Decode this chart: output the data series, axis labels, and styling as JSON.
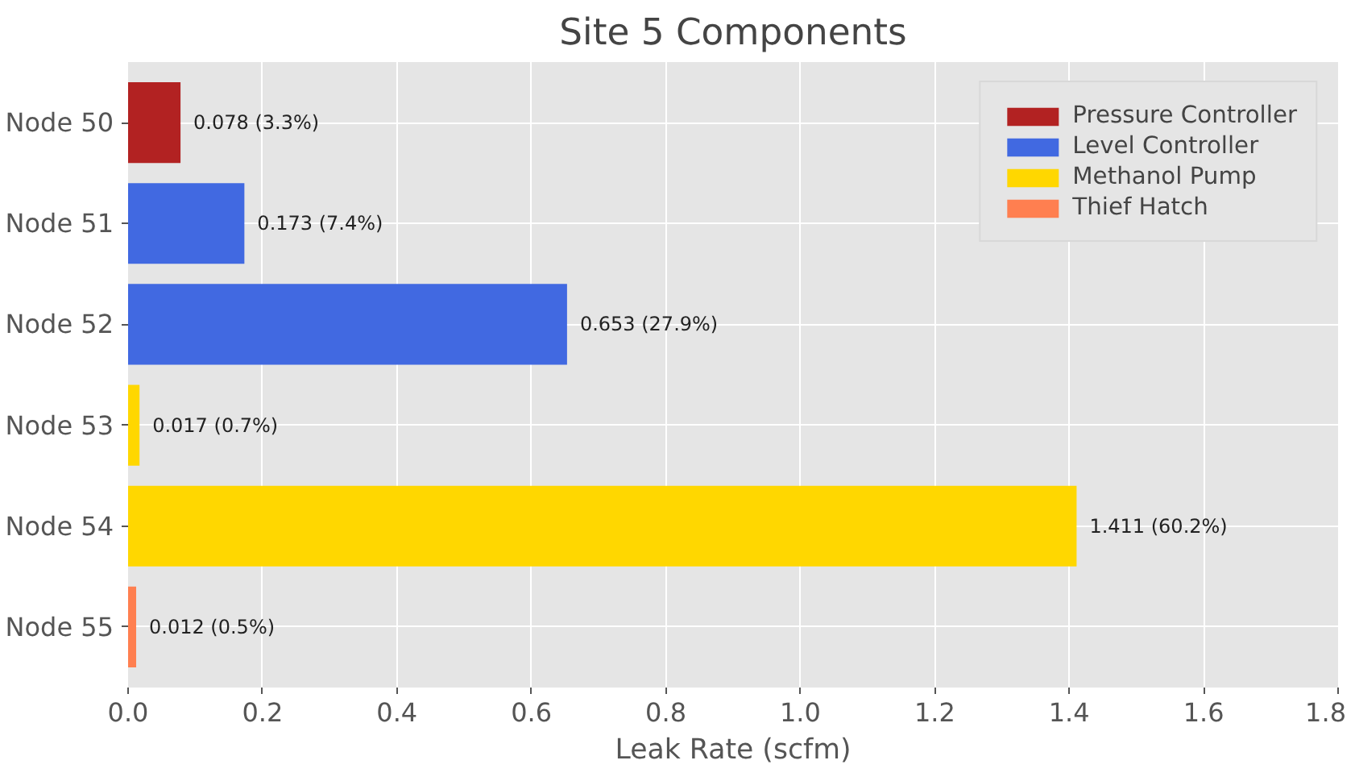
{
  "chart_data": {
    "type": "bar",
    "orientation": "horizontal",
    "title": "Site 5 Components",
    "xlabel": "Leak Rate (scfm)",
    "categories": [
      "Node 50",
      "Node 51",
      "Node 52",
      "Node 53",
      "Node 54",
      "Node 55"
    ],
    "series": [
      {
        "name": "Pressure Controller",
        "color": "#b22222",
        "values": [
          0.078,
          null,
          null,
          null,
          null,
          null
        ],
        "value_labels": [
          "0.078 (3.3%)",
          null,
          null,
          null,
          null,
          null
        ]
      },
      {
        "name": "Level Controller",
        "color": "#4169e1",
        "values": [
          null,
          0.173,
          0.653,
          null,
          null,
          null
        ],
        "value_labels": [
          null,
          "0.173 (7.4%)",
          "0.653 (27.9%)",
          null,
          null,
          null
        ]
      },
      {
        "name": "Methanol Pump",
        "color": "#ffd700",
        "values": [
          null,
          null,
          null,
          0.017,
          1.411,
          null
        ],
        "value_labels": [
          null,
          null,
          null,
          "0.017 (0.7%)",
          "1.411 (60.2%)",
          null
        ]
      },
      {
        "name": "Thief Hatch",
        "color": "#ff7f50",
        "values": [
          null,
          null,
          null,
          null,
          null,
          0.012
        ],
        "value_labels": [
          null,
          null,
          null,
          null,
          null,
          "0.012 (0.5%)"
        ]
      }
    ],
    "xlim": [
      0,
      1.8
    ],
    "xticks": [
      {
        "value": 0,
        "label": "0.0"
      },
      0.2,
      0.4,
      0.6,
      0.8,
      {
        "value": 1,
        "label": "1.0"
      },
      1.2,
      1.4,
      1.6,
      1.8
    ],
    "grid": true,
    "legend": "top right"
  }
}
